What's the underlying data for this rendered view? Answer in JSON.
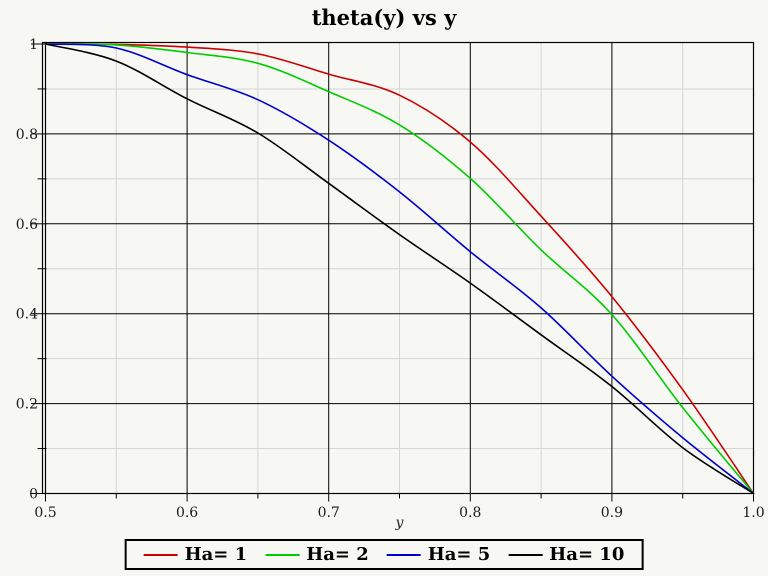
{
  "page": {
    "background": "#f7f7f4"
  },
  "chart_data": {
    "type": "line",
    "title": "theta(y) vs y",
    "xlabel": "y",
    "ylabel": "",
    "xlim": [
      0.5,
      1.0
    ],
    "ylim": [
      0,
      1
    ],
    "grid": {
      "major_color": "#000000",
      "minor_color": "#d6d6d6",
      "major_on": true,
      "minor_on": true
    },
    "legend_position": "bottom-center",
    "x_ticks": {
      "values": [
        0.5,
        0.6,
        0.7,
        0.8,
        0.9,
        1.0
      ],
      "labels": [
        "0.5",
        "0.6",
        "0.7",
        "0.8",
        "0.9",
        "1.0"
      ],
      "minor": [
        0.55,
        0.65,
        0.75,
        0.85,
        0.95
      ]
    },
    "y_ticks": {
      "values": [
        0,
        0.2,
        0.4,
        0.6,
        0.8,
        1
      ],
      "labels": [
        "0",
        "0.2",
        "0.4",
        "0.6",
        "0.8",
        "1"
      ],
      "minor": [
        0.1,
        0.3,
        0.5,
        0.7,
        0.9
      ]
    },
    "x": [
      0.5,
      0.55,
      0.6,
      0.65,
      0.7,
      0.75,
      0.8,
      0.85,
      0.9,
      0.95,
      1.0
    ],
    "series": [
      {
        "name": "Ha= 1",
        "color": "#cc0000",
        "values": [
          1.0,
          0.999,
          0.993,
          0.978,
          0.933,
          0.886,
          0.782,
          0.617,
          0.438,
          0.231,
          0.0
        ]
      },
      {
        "name": "Ha= 2",
        "color": "#00cc00",
        "values": [
          1.0,
          0.998,
          0.981,
          0.957,
          0.894,
          0.82,
          0.701,
          0.542,
          0.398,
          0.191,
          0.0
        ]
      },
      {
        "name": "Ha= 5",
        "color": "#0000cc",
        "values": [
          1.0,
          0.991,
          0.932,
          0.876,
          0.786,
          0.671,
          0.538,
          0.413,
          0.261,
          0.124,
          0.0
        ]
      },
      {
        "name": "Ha= 10",
        "color": "#000000",
        "values": [
          1.0,
          0.962,
          0.878,
          0.802,
          0.69,
          0.576,
          0.468,
          0.353,
          0.238,
          0.102,
          0.0
        ]
      }
    ]
  }
}
